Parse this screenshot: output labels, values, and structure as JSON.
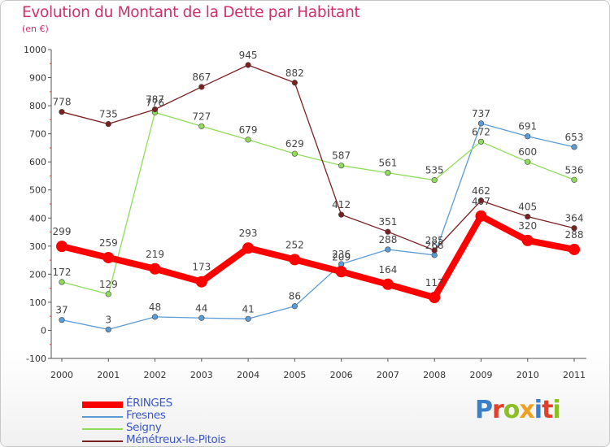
{
  "header": {
    "title": "Evolution du Montant de la Dette par Habitant",
    "unit": "(en €)"
  },
  "brand": {
    "text": "Proxiti",
    "colors": [
      "#3a80c8",
      "#e0402a",
      "#8cbf26",
      "#f0a020",
      "#3a80c8",
      "#e0402a",
      "#8cbf26"
    ]
  },
  "chart_data": {
    "type": "line",
    "title": "Evolution du Montant de la Dette par Habitant",
    "subtitle": "(en €)",
    "xlabel": "",
    "ylabel": "",
    "ylim": [
      -100,
      1000
    ],
    "yticks": [
      -100,
      0,
      100,
      200,
      300,
      400,
      500,
      600,
      700,
      800,
      900,
      1000
    ],
    "grid": false,
    "legend": "bottom-left",
    "categories": [
      "2000",
      "2001",
      "2002",
      "2003",
      "2004",
      "2005",
      "2006",
      "2007",
      "2008",
      "2009",
      "2010",
      "2011"
    ],
    "series": [
      {
        "name": "ÉRINGES",
        "color": "#ff0000",
        "highlight": true,
        "values": [
          299,
          259,
          219,
          173,
          293,
          252,
          209,
          164,
          117,
          407,
          320,
          288
        ],
        "labels": [
          "299",
          "259",
          "219",
          "173",
          "293",
          "252",
          "209",
          "164",
          "117",
          "407",
          "320",
          "288"
        ]
      },
      {
        "name": "Fresnes",
        "color": "#5b9bd5",
        "highlight": false,
        "values": [
          37,
          3,
          48,
          44,
          41,
          86,
          236,
          288,
          268,
          737,
          691,
          653
        ],
        "labels": [
          "37",
          "3",
          "48",
          "44",
          "41",
          "86",
          "236",
          "288",
          "268",
          "737",
          "691",
          "653"
        ]
      },
      {
        "name": "Seigny",
        "color": "#8fdc5a",
        "highlight": false,
        "values": [
          172,
          129,
          776,
          727,
          679,
          629,
          587,
          561,
          535,
          672,
          600,
          536
        ],
        "labels": [
          "172",
          "129",
          "776",
          "727",
          "679",
          "629",
          "587",
          "561",
          "535",
          "672",
          "600",
          "536"
        ]
      },
      {
        "name": "Ménétreux-le-Pitois",
        "color": "#7a2020",
        "highlight": false,
        "values": [
          778,
          735,
          787,
          867,
          945,
          882,
          412,
          351,
          285,
          462,
          405,
          364
        ],
        "labels": [
          "778",
          "735",
          "787",
          "867",
          "945",
          "882",
          "412",
          "351",
          "285",
          "462",
          "405",
          "364"
        ]
      }
    ]
  }
}
